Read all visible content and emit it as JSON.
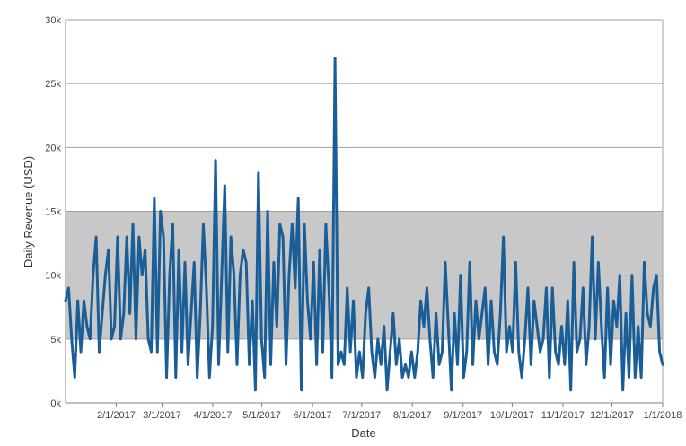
{
  "chart_data": {
    "type": "line",
    "title": "",
    "xlabel": "Date",
    "ylabel": "Daily Revenue (USD)",
    "ylim": [
      0,
      30000
    ],
    "xlim": [
      "2017-01-01",
      "2018-01-01"
    ],
    "y_ticks": [
      {
        "value": 0,
        "label": "0k"
      },
      {
        "value": 5000,
        "label": "5k"
      },
      {
        "value": 10000,
        "label": "10k"
      },
      {
        "value": 15000,
        "label": "15k"
      },
      {
        "value": 20000,
        "label": "20k"
      },
      {
        "value": 25000,
        "label": "25k"
      },
      {
        "value": 30000,
        "label": "30k"
      }
    ],
    "x_ticks": [
      {
        "value": "2017-02-01",
        "label": "2/1/2017"
      },
      {
        "value": "2017-03-01",
        "label": "3/1/2017"
      },
      {
        "value": "2017-04-01",
        "label": "4/1/2017"
      },
      {
        "value": "2017-05-01",
        "label": "5/1/2017"
      },
      {
        "value": "2017-06-01",
        "label": "6/1/2017"
      },
      {
        "value": "2017-07-01",
        "label": "7/1/2017"
      },
      {
        "value": "2017-08-01",
        "label": "8/1/2017"
      },
      {
        "value": "2017-09-01",
        "label": "9/1/2017"
      },
      {
        "value": "2017-10-01",
        "label": "10/1/2017"
      },
      {
        "value": "2017-11-01",
        "label": "11/1/2017"
      },
      {
        "value": "2017-12-01",
        "label": "12/1/2017"
      },
      {
        "value": "2018-01-01",
        "label": "1/1/2018"
      }
    ],
    "grid": true,
    "band": {
      "ymin": 5000,
      "ymax": 15000,
      "color": "#c8c8c8"
    },
    "colors": {
      "line": "#1a5e98",
      "grid": "#a0a0a0",
      "axis": "#808080",
      "band": "#c8c8c8"
    },
    "series": [
      {
        "values": [
          8000,
          9000,
          5000,
          2000,
          8000,
          4000,
          8000,
          6000,
          5000,
          10000,
          13000,
          4000,
          7000,
          10000,
          12000,
          5000,
          6000,
          13000,
          5000,
          7000,
          13000,
          7000,
          14000,
          5000,
          13000,
          10000,
          12000,
          5000,
          4000,
          16000,
          4000,
          15000,
          13000,
          2000,
          10000,
          14000,
          2000,
          12000,
          4000,
          11000,
          3000,
          7000,
          11000,
          2000,
          7000,
          14000,
          9000,
          2000,
          6000,
          19000,
          3000,
          10000,
          17000,
          4000,
          13000,
          10000,
          3000,
          10000,
          12000,
          11000,
          3000,
          8000,
          1000,
          18000,
          5000,
          2000,
          15000,
          3000,
          11000,
          6000,
          14000,
          13000,
          3000,
          10000,
          14000,
          9000,
          16000,
          1000,
          14000,
          8000,
          5000,
          11000,
          3000,
          12000,
          4000,
          14000,
          9000,
          2000,
          27000,
          3000,
          4000,
          3000,
          9000,
          4000,
          8000,
          2000,
          4000,
          2000,
          7000,
          9000,
          4000,
          2000,
          5000,
          3000,
          6000,
          1000,
          4000,
          7000,
          3000,
          5000,
          2000,
          3000,
          2000,
          4000,
          2000,
          4000,
          8000,
          6000,
          9000,
          5000,
          2000,
          7000,
          3000,
          4000,
          11000,
          6000,
          1000,
          7000,
          3000,
          10000,
          2000,
          4000,
          11000,
          3000,
          8000,
          5000,
          7000,
          9000,
          3000,
          8000,
          4000,
          3000,
          7000,
          13000,
          4000,
          6000,
          4000,
          11000,
          4000,
          2000,
          5000,
          9000,
          3000,
          8000,
          6000,
          4000,
          5000,
          9000,
          2000,
          9000,
          4000,
          3000,
          6000,
          3000,
          8000,
          1000,
          11000,
          4000,
          5000,
          9000,
          3000,
          6000,
          13000,
          5000,
          11000,
          6000,
          2000,
          9000,
          3000,
          8000,
          6000,
          10000,
          1000,
          7000,
          2000,
          10000,
          2000,
          6000,
          2000,
          11000,
          7000,
          6000,
          9000,
          10000,
          4000,
          3000
        ]
      }
    ]
  }
}
